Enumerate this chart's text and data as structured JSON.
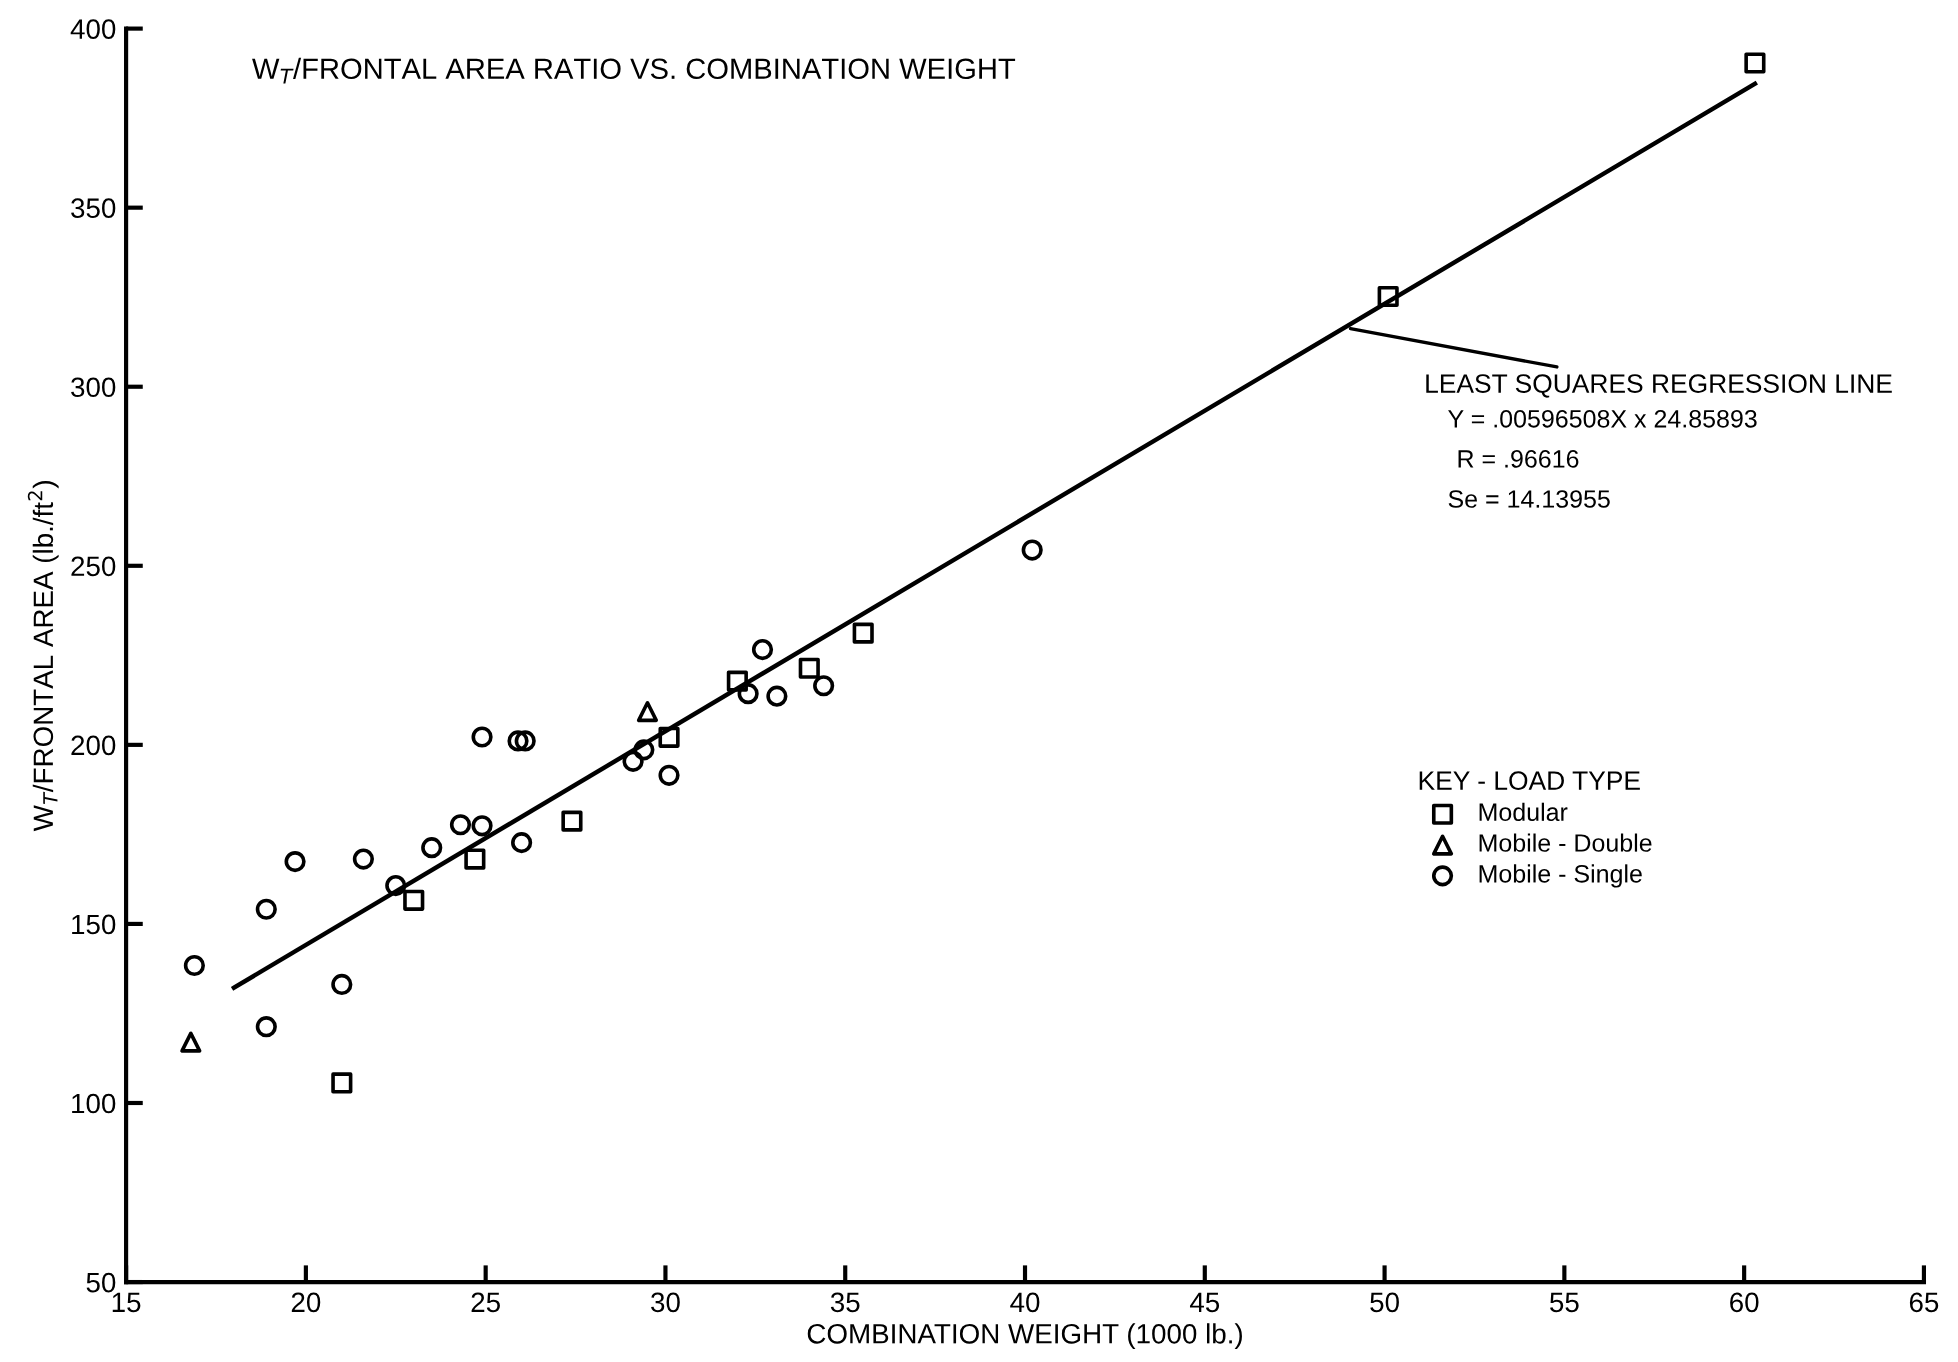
{
  "chart_data": {
    "type": "scatter",
    "title": "W$_{T}$/FRONTAL AREA RATIO VS. COMBINATION WEIGHT",
    "xlabel": "COMBINATION WEIGHT (1000 lb.)",
    "ylabel": "W$_{T}$/FRONTAL AREA (lb./ft$^{2}$)",
    "legend_title": "KEY - LOAD TYPE",
    "xlim": [
      15,
      65
    ],
    "xticks": [
      15,
      20,
      25,
      30,
      35,
      40,
      45,
      50,
      55,
      60,
      65
    ],
    "ylim": [
      50,
      400
    ],
    "yticks": [
      50,
      100,
      150,
      200,
      250,
      300,
      350,
      400
    ],
    "grid": false,
    "legend": "right",
    "series": [
      {
        "name": "Modular",
        "marker": "square",
        "color": "#000000",
        "x": [
          21.0,
          23.0,
          24.7,
          27.4,
          30.1,
          32.0,
          34.0,
          35.5,
          50.1,
          60.3
        ],
        "values": [
          105.6,
          156.6,
          168.1,
          178.7,
          202.1,
          217.8,
          221.4,
          231.2,
          325.2,
          390.4
        ]
      },
      {
        "name": "Mobile - Double",
        "marker": "triangle",
        "color": "#000000",
        "x": [
          16.8,
          29.5
        ],
        "values": [
          117,
          209.3
        ]
      },
      {
        "name": "Mobile - Single",
        "marker": "circle",
        "color": "#000000",
        "x": [
          16.9,
          18.9,
          18.9,
          19.7,
          21.0,
          21.6,
          22.5,
          23.5,
          24.3,
          24.9,
          24.9,
          26.0,
          25.9,
          26.1,
          29.1,
          29.4,
          30.1,
          32.3,
          32.7,
          33.1,
          34.4,
          40.2
        ],
        "values": [
          138.4,
          154.1,
          121.3,
          167.4,
          133.1,
          168.1,
          160.7,
          171.3,
          177.7,
          177.4,
          202.2,
          172.7,
          201.1,
          201.1,
          195.4,
          198.6,
          191.5,
          214.3,
          226.6,
          213.6,
          216.5,
          254.4
        ]
      },
      {
        "type": "line",
        "marker": "none",
        "line_style": "solid",
        "color": "#000000",
        "x": [
          18.0,
          60.3
        ],
        "values": [
          132.2,
          384.6
        ]
      }
    ],
    "annotations": [
      {
        "text": "LEAST SQUARES REGRESSION LINE",
        "x": 48.9,
        "y": 316.5
      },
      "Y = .00596508X x 24.85893",
      "R = .96616",
      "Se = 14.13955"
    ]
  }
}
